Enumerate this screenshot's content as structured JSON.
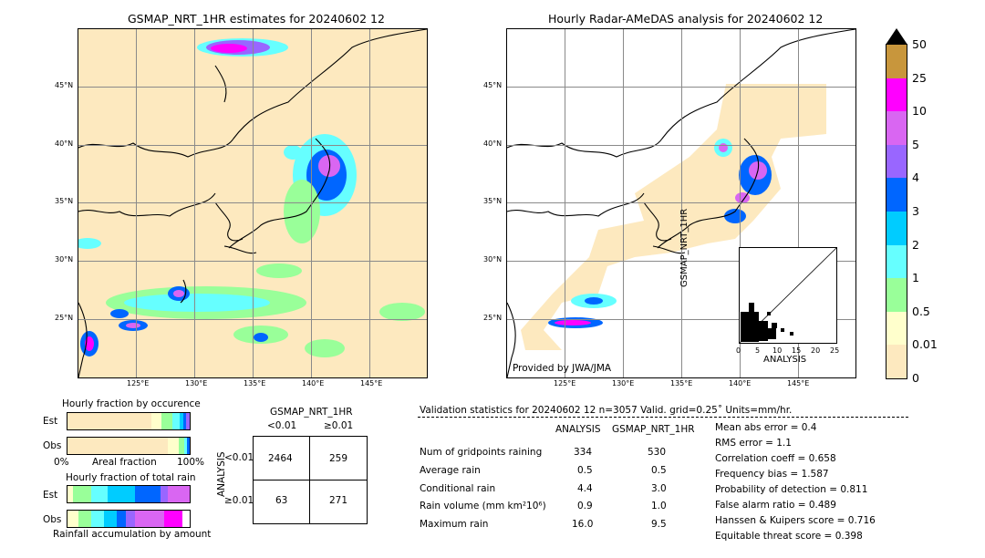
{
  "left_map": {
    "title": "GSMAP_NRT_1HR estimates for 20240602 12",
    "lat_labels": [
      "45°N",
      "40°N",
      "35°N",
      "30°N",
      "25°N"
    ],
    "lon_labels": [
      "125°E",
      "130°E",
      "135°E",
      "140°E",
      "145°E"
    ]
  },
  "right_map": {
    "title": "Hourly Radar-AMeDAS analysis for 20240602 12",
    "lat_labels": [
      "45°N",
      "40°N",
      "35°N",
      "30°N",
      "25°N"
    ],
    "lon_labels": [
      "125°E",
      "130°E",
      "135°E",
      "140°E",
      "145°E"
    ],
    "credit": "Provided by JWA/JMA"
  },
  "colorbar": {
    "labels": [
      "50",
      "25",
      "10",
      "5",
      "4",
      "3",
      "2",
      "1",
      "0.5",
      "0.01",
      "0"
    ],
    "colors": [
      "#c8963c",
      "#ff00ff",
      "#d966f2",
      "#9966ff",
      "#0066ff",
      "#00ccff",
      "#66ffff",
      "#99ff99",
      "#ffffcc",
      "#fde9bf"
    ]
  },
  "scatter": {
    "ylabel": "GSMAP_NRT_1HR",
    "xlabel": "ANALYSIS",
    "ticks": [
      "0",
      "5",
      "10",
      "15",
      "20",
      "25"
    ]
  },
  "fraction_occurrence": {
    "title": "Hourly fraction by occurence",
    "rows": [
      "Est",
      "Obs"
    ],
    "axis_left": "0%",
    "axis_mid": "Areal fraction",
    "axis_right": "100%"
  },
  "fraction_total": {
    "title": "Hourly fraction of total rain",
    "rows": [
      "Est",
      "Obs"
    ],
    "footer": "Rainfall accumulation by amount"
  },
  "contingency": {
    "col_title": "GSMAP_NRT_1HR",
    "col_labels": [
      "<0.01",
      "≥0.01"
    ],
    "row_title": "ANALYSIS",
    "row_labels": [
      "<0.01",
      "≥0.01"
    ],
    "cells": [
      [
        "2464",
        "259"
      ],
      [
        "63",
        "271"
      ]
    ]
  },
  "validation": {
    "header": "Validation statistics for 20240602 12  n=3057 Valid. grid=0.25˚ Units=mm/hr.",
    "col_analysis": "ANALYSIS",
    "col_gsmap": "GSMAP_NRT_1HR",
    "rows": [
      {
        "label": "Num of gridpoints raining",
        "analysis": "334",
        "gsmap": "530"
      },
      {
        "label": "Average rain",
        "analysis": "0.5",
        "gsmap": "0.5"
      },
      {
        "label": "Conditional rain",
        "analysis": "4.4",
        "gsmap": "3.0"
      },
      {
        "label": "Rain volume (mm km²10⁶)",
        "analysis": "0.9",
        "gsmap": "1.0"
      },
      {
        "label": "Maximum rain",
        "analysis": "16.0",
        "gsmap": "9.5"
      }
    ],
    "scores": [
      "Mean abs error =    0.4",
      "RMS error =    1.1",
      "Correlation coeff =  0.658",
      "Frequency bias =  1.587",
      "Probability of detection =  0.811",
      "False alarm ratio =  0.489",
      "Hanssen & Kuipers score =  0.716",
      "Equitable threat score =  0.398"
    ]
  },
  "chart_data": {
    "type": "table",
    "contingency": [
      [
        2464,
        259
      ],
      [
        63,
        271
      ]
    ],
    "statistics": {
      "n": 3057,
      "num_gridpoints_raining": {
        "analysis": 334,
        "gsmap": 530
      },
      "average_rain": {
        "analysis": 0.5,
        "gsmap": 0.5
      },
      "conditional_rain": {
        "analysis": 4.4,
        "gsmap": 3.0
      },
      "rain_volume": {
        "analysis": 0.9,
        "gsmap": 1.0
      },
      "maximum_rain": {
        "analysis": 16.0,
        "gsmap": 9.5
      },
      "mean_abs_error": 0.4,
      "rms_error": 1.1,
      "correlation": 0.658,
      "frequency_bias": 1.587,
      "pod": 0.811,
      "far": 0.489,
      "hk": 0.716,
      "ets": 0.398
    },
    "colorbar_levels": [
      0,
      0.01,
      0.5,
      1,
      2,
      3,
      4,
      5,
      10,
      25,
      50
    ]
  }
}
